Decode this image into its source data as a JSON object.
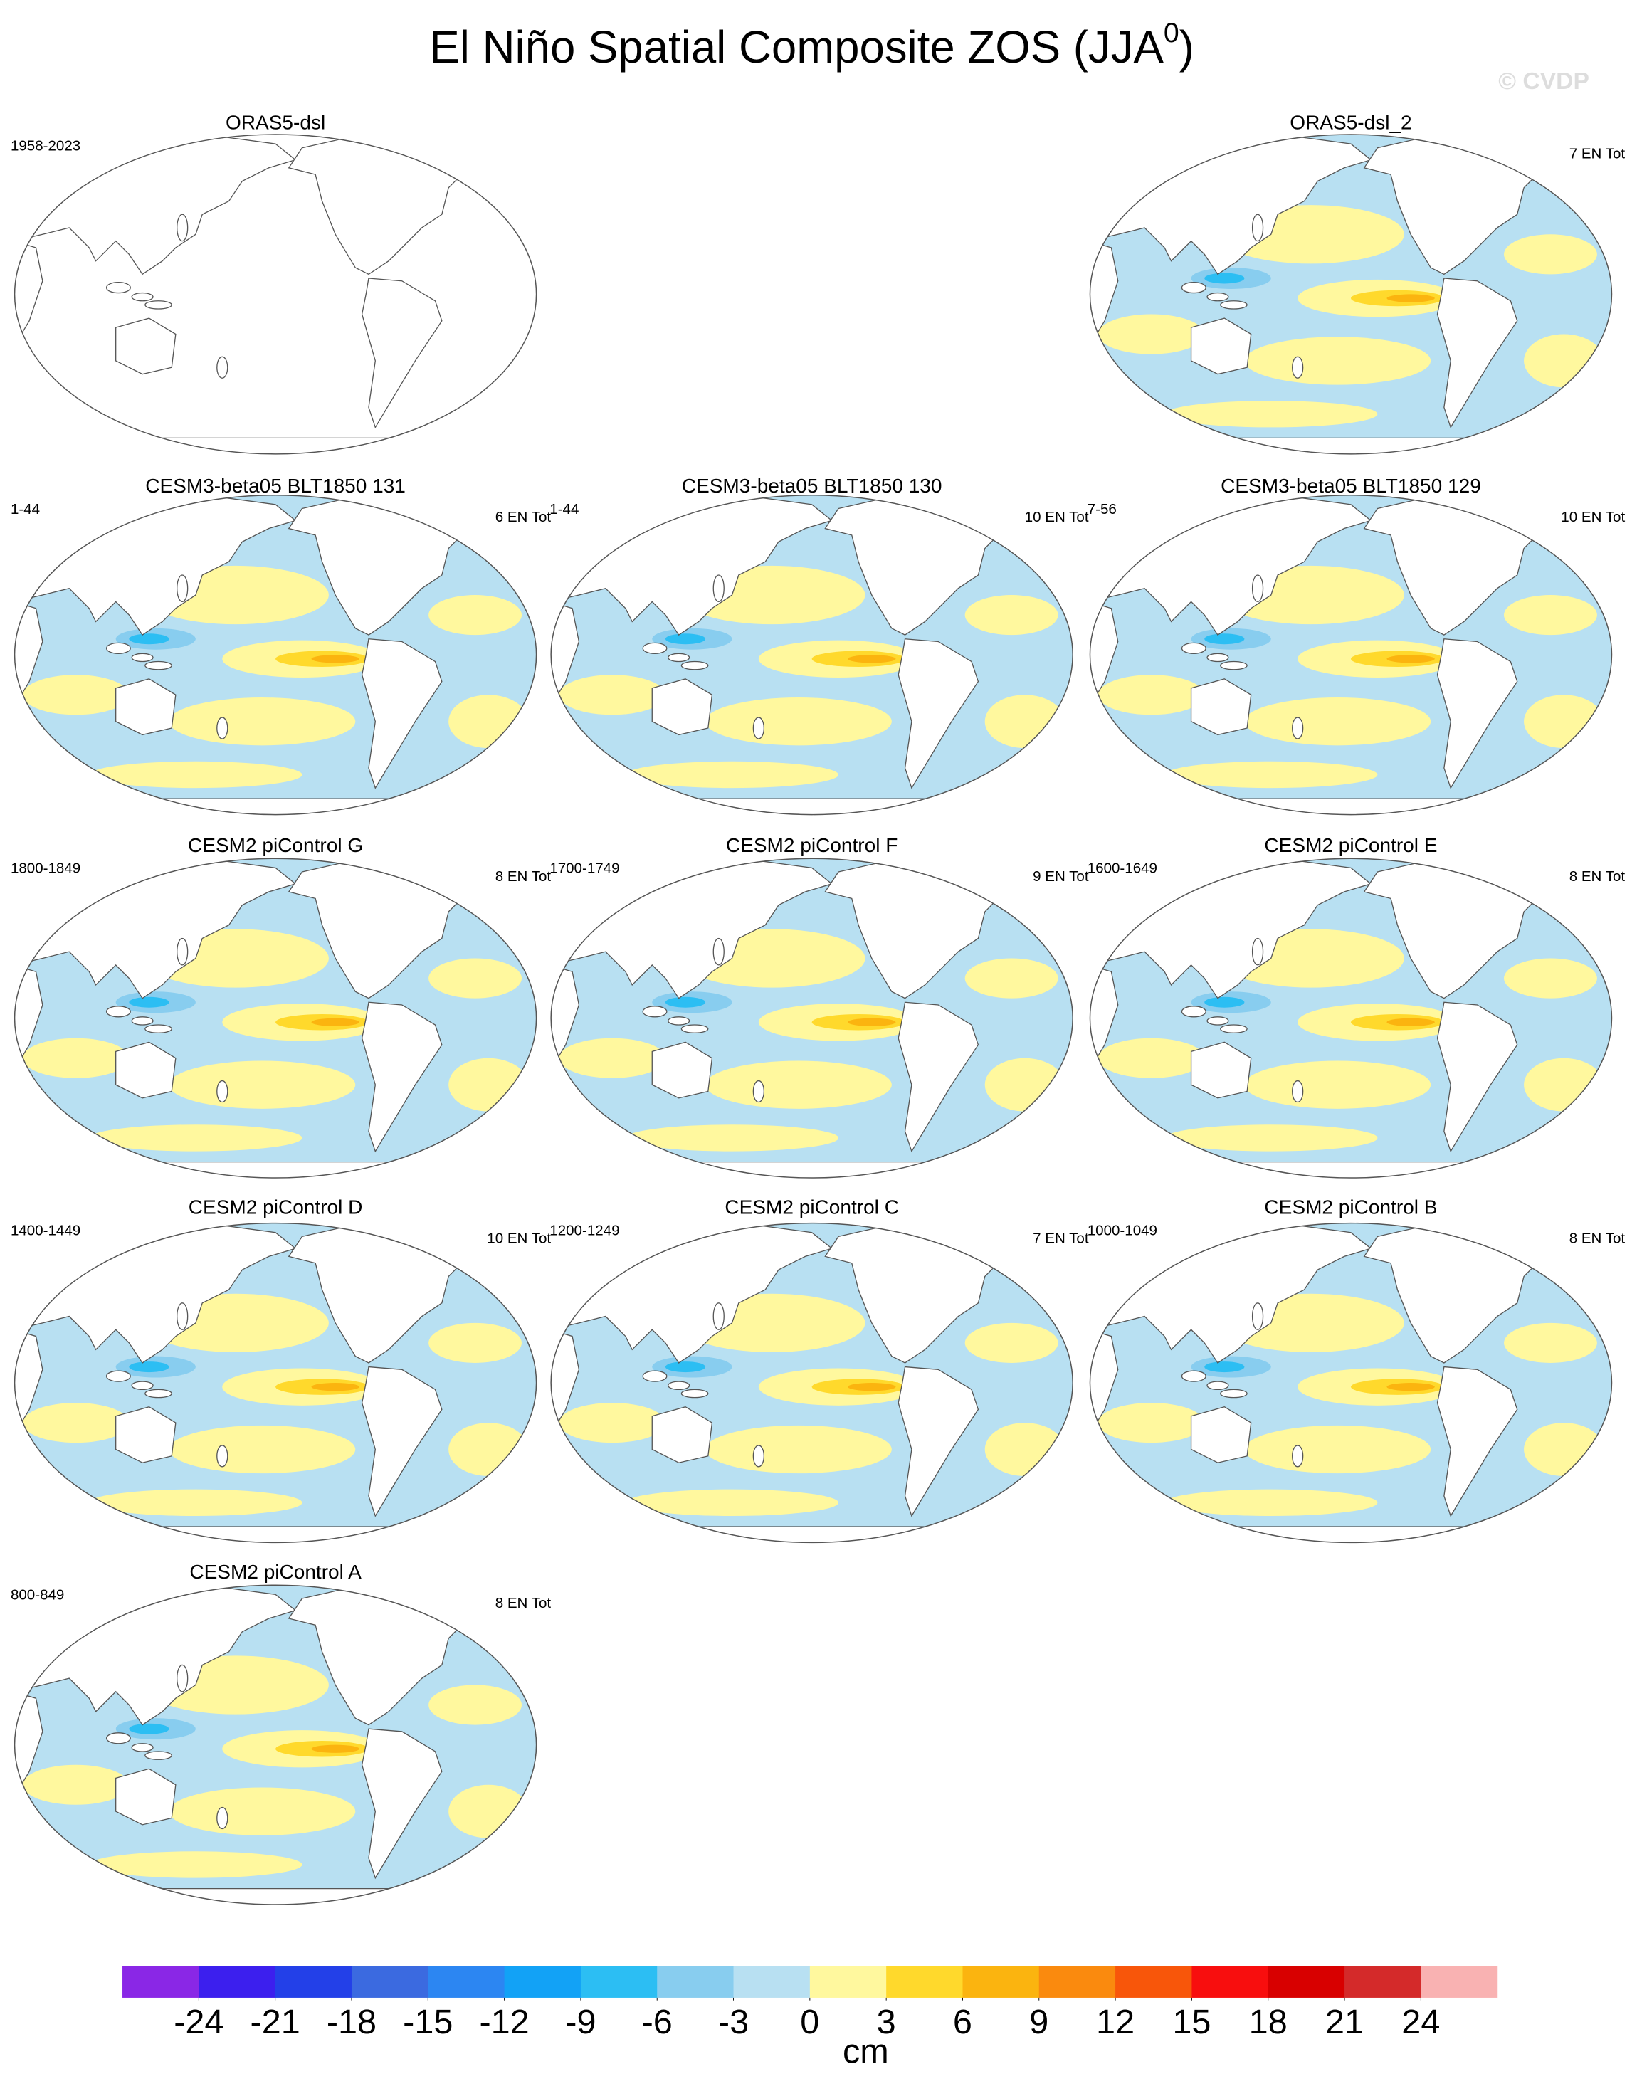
{
  "title": {
    "text": "El Niño Spatial Composite ZOS (JJA",
    "superscript": "0",
    "close": ")"
  },
  "watermark": "© CVDP",
  "panels": [
    {
      "title": "ORAS5-dsl",
      "period": "1958-2023"
    },
    {
      "title": "ORAS5-dsl_2",
      "count": "7 EN Tot"
    },
    {
      "title": "CESM3-beta05 BLT1850 131",
      "period": "1-44",
      "count": "6 EN Tot"
    },
    {
      "title": "CESM3-beta05 BLT1850 130",
      "period": "1-44",
      "count": "10 EN Tot"
    },
    {
      "title": "CESM3-beta05 BLT1850 129",
      "period": "7-56",
      "count": "10 EN Tot"
    },
    {
      "title": "CESM2 piControl G",
      "period": "1800-1849",
      "count": "8 EN Tot"
    },
    {
      "title": "CESM2 piControl F",
      "period": "1700-1749",
      "count": "9 EN Tot"
    },
    {
      "title": "CESM2 piControl E",
      "period": "1600-1649",
      "count": "8 EN Tot"
    },
    {
      "title": "CESM2 piControl D",
      "period": "1400-1449",
      "count": "10 EN Tot"
    },
    {
      "title": "CESM2 piControl C",
      "period": "1200-1249",
      "count": "7 EN Tot"
    },
    {
      "title": "CESM2 piControl B",
      "period": "1000-1049",
      "count": "8 EN Tot"
    },
    {
      "title": "CESM2 piControl A",
      "period": "800-849",
      "count": "8 EN Tot"
    }
  ],
  "chart_data": {
    "type": "colorbar",
    "levels": [
      -24,
      -21,
      -18,
      -15,
      -12,
      -9,
      -6,
      -3,
      0,
      3,
      6,
      9,
      12,
      15,
      18,
      21,
      24
    ],
    "colors": [
      "#8a27e6",
      "#3c1fee",
      "#2340e8",
      "#3b6ae0",
      "#2c86f2",
      "#12a2f6",
      "#2cbef3",
      "#88cdef",
      "#b8e0f2",
      "#fff89e",
      "#ffd92c",
      "#fbb40f",
      "#fa8a0e",
      "#f8560a",
      "#f80e0e",
      "#d80000",
      "#d42a2a",
      "#f9b2b2"
    ],
    "label": "cm"
  }
}
